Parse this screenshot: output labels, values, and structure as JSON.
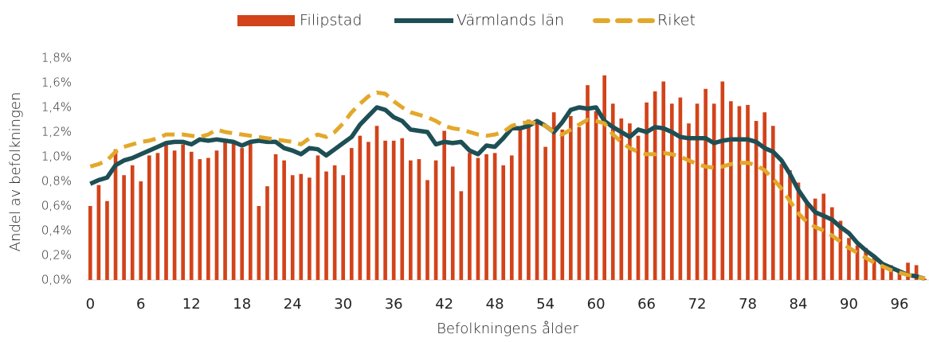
{
  "chart_data": {
    "type": "bar",
    "xlabel": "Befolkningens ålder",
    "ylabel": "Andel av befolkningen",
    "categories": [
      0,
      null,
      null,
      null,
      null,
      null,
      6,
      null,
      null,
      null,
      null,
      null,
      12,
      null,
      null,
      null,
      null,
      null,
      18,
      null,
      null,
      null,
      null,
      null,
      24,
      null,
      null,
      null,
      null,
      null,
      30,
      null,
      null,
      null,
      null,
      null,
      36,
      null,
      null,
      null,
      null,
      null,
      42,
      null,
      null,
      null,
      null,
      null,
      48,
      null,
      null,
      null,
      null,
      null,
      54,
      null,
      null,
      null,
      null,
      null,
      60,
      null,
      null,
      null,
      null,
      null,
      66,
      null,
      null,
      null,
      null,
      null,
      72,
      null,
      null,
      null,
      null,
      null,
      78,
      null,
      null,
      null,
      null,
      null,
      84,
      null,
      null,
      null,
      null,
      null,
      90,
      null,
      null,
      null,
      null,
      null,
      96,
      null,
      null,
      null
    ],
    "ylim": [
      0,
      1.8
    ],
    "yticks": [
      {
        "value": 0,
        "label": "0,0%"
      },
      {
        "value": 0.2,
        "label": "0,2%"
      },
      {
        "value": 0.4,
        "label": "0,4%"
      },
      {
        "value": 0.6,
        "label": "0,6%"
      },
      {
        "value": 0.8,
        "label": "0,8%"
      },
      {
        "value": 1.0,
        "label": "1,0%"
      },
      {
        "value": 1.2,
        "label": "1,2%"
      },
      {
        "value": 1.4,
        "label": "1,4%"
      },
      {
        "value": 1.6,
        "label": "1,6%"
      },
      {
        "value": 1.8,
        "label": "1,8%"
      }
    ],
    "series": [
      {
        "name": "Filipstad",
        "type": "bar",
        "color": "#d2431a",
        "values": [
          0.6,
          0.77,
          0.64,
          1.06,
          0.85,
          0.93,
          0.8,
          1.01,
          1.03,
          1.12,
          1.05,
          1.1,
          1.04,
          0.98,
          0.99,
          1.05,
          1.14,
          1.12,
          1.07,
          1.12,
          0.6,
          0.76,
          1.02,
          0.97,
          0.85,
          0.86,
          0.83,
          1.01,
          0.88,
          0.93,
          0.85,
          1.07,
          1.17,
          1.12,
          1.25,
          1.13,
          1.13,
          1.15,
          0.97,
          0.98,
          0.81,
          0.97,
          1.21,
          0.92,
          0.72,
          1.03,
          0.99,
          1.02,
          1.03,
          0.93,
          1.01,
          1.24,
          1.3,
          1.3,
          1.08,
          1.36,
          1.22,
          1.33,
          1.24,
          1.58,
          1.37,
          1.66,
          1.43,
          1.31,
          1.27,
          1.17,
          1.44,
          1.53,
          1.61,
          1.43,
          1.48,
          1.27,
          1.43,
          1.55,
          1.43,
          1.61,
          1.45,
          1.41,
          1.42,
          1.29,
          1.36,
          1.25,
          0.94,
          0.89,
          0.79,
          0.62,
          0.66,
          0.7,
          0.59,
          0.48,
          0.34,
          0.28,
          0.26,
          0.19,
          0.14,
          0.12,
          0.06,
          0.14,
          0.12,
          0.01
        ]
      },
      {
        "name": "Värmlands län",
        "type": "line",
        "color": "#1d4f55",
        "values": [
          0.78,
          0.81,
          0.83,
          0.93,
          0.97,
          0.99,
          1.02,
          1.05,
          1.08,
          1.11,
          1.12,
          1.12,
          1.1,
          1.14,
          1.13,
          1.14,
          1.13,
          1.12,
          1.09,
          1.12,
          1.13,
          1.12,
          1.12,
          1.07,
          1.05,
          1.02,
          1.07,
          1.06,
          1.01,
          1.06,
          1.11,
          1.16,
          1.26,
          1.33,
          1.4,
          1.38,
          1.32,
          1.29,
          1.22,
          1.21,
          1.2,
          1.1,
          1.12,
          1.11,
          1.12,
          1.05,
          1.02,
          1.09,
          1.08,
          1.15,
          1.23,
          1.23,
          1.25,
          1.29,
          1.25,
          1.2,
          1.28,
          1.38,
          1.4,
          1.39,
          1.4,
          1.29,
          1.24,
          1.2,
          1.16,
          1.22,
          1.2,
          1.24,
          1.23,
          1.2,
          1.16,
          1.15,
          1.15,
          1.15,
          1.11,
          1.13,
          1.14,
          1.14,
          1.14,
          1.12,
          1.07,
          1.04,
          0.97,
          0.86,
          0.73,
          0.63,
          0.55,
          0.52,
          0.49,
          0.43,
          0.38,
          0.3,
          0.24,
          0.19,
          0.13,
          0.1,
          0.07,
          0.04,
          0.03,
          0.01
        ]
      },
      {
        "name": "Riket",
        "type": "line",
        "style": "dashed",
        "color": "#e3a82b",
        "values": [
          0.92,
          0.94,
          0.97,
          1.04,
          1.08,
          1.1,
          1.12,
          1.13,
          1.15,
          1.18,
          1.18,
          1.18,
          1.17,
          1.16,
          1.18,
          1.22,
          1.2,
          1.19,
          1.18,
          1.17,
          1.16,
          1.15,
          1.14,
          1.13,
          1.12,
          1.1,
          1.15,
          1.18,
          1.16,
          1.2,
          1.27,
          1.36,
          1.43,
          1.49,
          1.52,
          1.51,
          1.45,
          1.4,
          1.36,
          1.34,
          1.32,
          1.29,
          1.25,
          1.23,
          1.22,
          1.2,
          1.18,
          1.17,
          1.18,
          1.2,
          1.25,
          1.27,
          1.28,
          1.27,
          1.25,
          1.2,
          1.18,
          1.22,
          1.26,
          1.3,
          1.29,
          1.27,
          1.18,
          1.12,
          1.07,
          1.04,
          1.02,
          1.02,
          1.03,
          1.02,
          1.0,
          0.97,
          0.94,
          0.92,
          0.91,
          0.92,
          0.94,
          0.95,
          0.95,
          0.93,
          0.89,
          0.82,
          0.74,
          0.64,
          0.54,
          0.47,
          0.43,
          0.4,
          0.36,
          0.31,
          0.26,
          0.22,
          0.18,
          0.14,
          0.11,
          0.08,
          0.06,
          0.04,
          0.03,
          0.01
        ]
      }
    ],
    "legend": "top"
  }
}
